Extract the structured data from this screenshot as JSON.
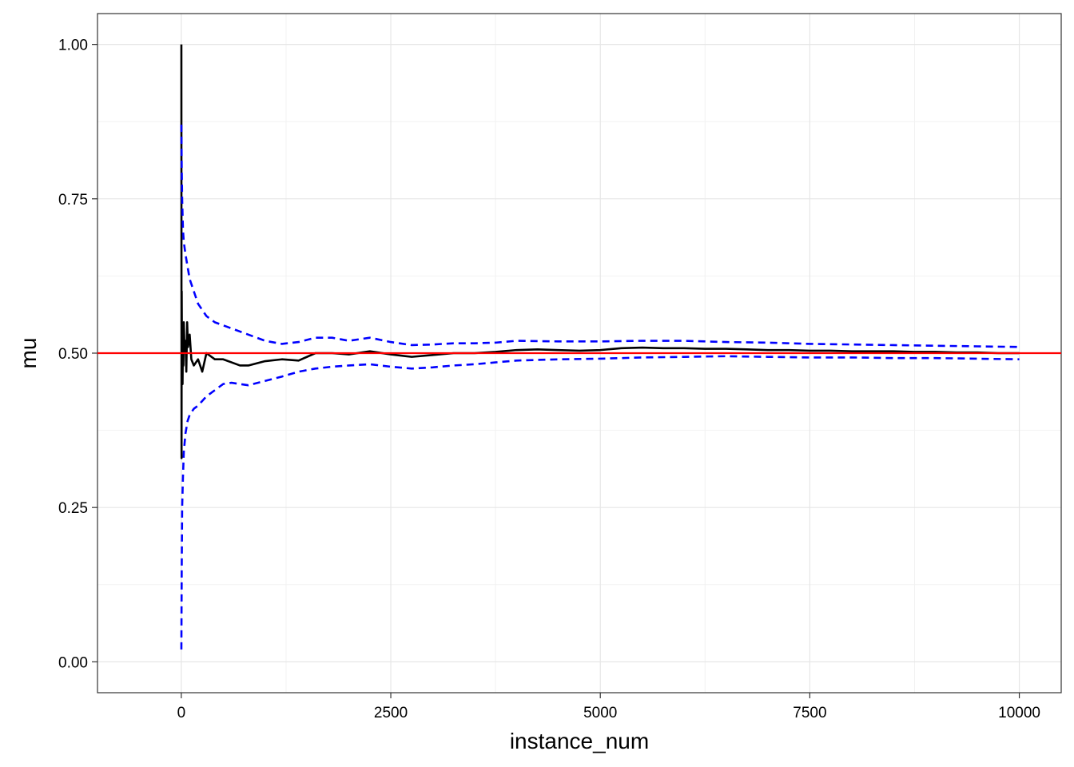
{
  "chart_data": {
    "type": "line",
    "xlabel": "instance_num",
    "ylabel": "mu",
    "xlim": [
      -1000,
      10500
    ],
    "ylim": [
      -0.05,
      1.05
    ],
    "x_ticks": [
      0,
      2500,
      5000,
      7500,
      10000
    ],
    "x_tick_labels": [
      "0",
      "2500",
      "5000",
      "7500",
      "10000"
    ],
    "y_ticks": [
      0,
      0.25,
      0.5,
      0.75,
      1
    ],
    "y_tick_labels": [
      "0.00",
      "0.25",
      "0.50",
      "0.75",
      "1.00"
    ],
    "grid": true,
    "legend": "none",
    "reference_line": {
      "y": 0.5,
      "color": "#ff0000"
    },
    "series": [
      {
        "color": "#000000",
        "style": "solid",
        "x": [
          1,
          3,
          5,
          8,
          10,
          15,
          20,
          25,
          30,
          40,
          50,
          60,
          70,
          80,
          100,
          120,
          150,
          200,
          250,
          300,
          400,
          500,
          600,
          700,
          800,
          1000,
          1200,
          1400,
          1600,
          1800,
          2000,
          2250,
          2500,
          2750,
          3000,
          3250,
          3500,
          3750,
          4000,
          4250,
          4500,
          4750,
          5000,
          5250,
          5500,
          5750,
          6000,
          6250,
          6500,
          6750,
          7000,
          7250,
          7500,
          7750,
          8000,
          8250,
          8500,
          8750,
          9000,
          9250,
          9500,
          9750,
          10000
        ],
        "y": [
          1.0,
          0.33,
          0.6,
          0.5,
          0.52,
          0.45,
          0.53,
          0.48,
          0.55,
          0.5,
          0.52,
          0.47,
          0.55,
          0.51,
          0.53,
          0.49,
          0.48,
          0.49,
          0.47,
          0.5,
          0.49,
          0.49,
          0.485,
          0.48,
          0.48,
          0.487,
          0.49,
          0.488,
          0.5,
          0.5,
          0.498,
          0.503,
          0.498,
          0.494,
          0.497,
          0.5,
          0.5,
          0.502,
          0.505,
          0.506,
          0.505,
          0.504,
          0.505,
          0.508,
          0.509,
          0.508,
          0.508,
          0.507,
          0.507,
          0.506,
          0.505,
          0.505,
          0.504,
          0.504,
          0.503,
          0.503,
          0.503,
          0.502,
          0.502,
          0.501,
          0.501,
          0.5,
          0.5
        ]
      },
      {
        "color": "#0000ff",
        "style": "dashed",
        "x": [
          1,
          5,
          10,
          20,
          30,
          50,
          75,
          100,
          150,
          200,
          300,
          400,
          500,
          600,
          700,
          800,
          1000,
          1200,
          1400,
          1600,
          1800,
          2000,
          2250,
          2500,
          2750,
          3000,
          3250,
          3500,
          3750,
          4000,
          4500,
          5000,
          5500,
          6000,
          6500,
          7000,
          7500,
          8000,
          8500,
          9000,
          9500,
          10000
        ],
        "y": [
          0.87,
          0.8,
          0.75,
          0.7,
          0.68,
          0.66,
          0.64,
          0.62,
          0.6,
          0.58,
          0.56,
          0.55,
          0.545,
          0.54,
          0.535,
          0.53,
          0.52,
          0.515,
          0.518,
          0.525,
          0.525,
          0.52,
          0.525,
          0.518,
          0.513,
          0.514,
          0.516,
          0.516,
          0.517,
          0.52,
          0.519,
          0.519,
          0.52,
          0.52,
          0.518,
          0.517,
          0.515,
          0.514,
          0.513,
          0.512,
          0.511,
          0.51
        ]
      },
      {
        "color": "#0000ff",
        "style": "dashed",
        "x": [
          1,
          5,
          10,
          20,
          30,
          50,
          75,
          100,
          150,
          200,
          300,
          400,
          500,
          600,
          700,
          800,
          1000,
          1200,
          1400,
          1600,
          1800,
          2000,
          2250,
          2500,
          2750,
          3000,
          3250,
          3500,
          3750,
          4000,
          4500,
          5000,
          5500,
          6000,
          6500,
          7000,
          7500,
          8000,
          8500,
          9000,
          9500,
          10000
        ],
        "y": [
          0.02,
          0.15,
          0.25,
          0.3,
          0.34,
          0.37,
          0.39,
          0.4,
          0.41,
          0.415,
          0.43,
          0.44,
          0.45,
          0.452,
          0.45,
          0.448,
          0.455,
          0.462,
          0.47,
          0.475,
          0.478,
          0.48,
          0.482,
          0.478,
          0.475,
          0.477,
          0.48,
          0.482,
          0.485,
          0.488,
          0.49,
          0.491,
          0.493,
          0.494,
          0.495,
          0.494,
          0.493,
          0.493,
          0.492,
          0.492,
          0.491,
          0.49
        ]
      }
    ]
  }
}
